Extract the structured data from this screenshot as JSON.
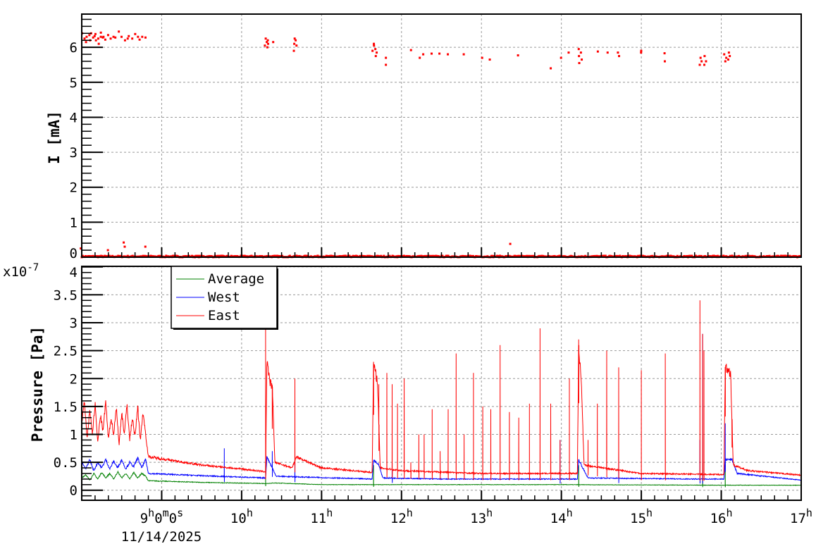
{
  "chart_data": [
    {
      "type": "scatter",
      "ylabel": "I [mA]",
      "xlim": [
        "08:00",
        "17:00"
      ],
      "ylim": [
        0,
        6.95
      ],
      "yticks": [
        "0",
        "1",
        "2",
        "3",
        "4",
        "5",
        "6"
      ],
      "grid": true,
      "color": "#ff0000",
      "points_at_zero": {
        "from": "08:00",
        "to": "17:00"
      },
      "points": [
        [
          "08:01",
          6.4
        ],
        [
          "08:02",
          6.25
        ],
        [
          "08:03",
          6.3
        ],
        [
          "08:04",
          6.15
        ],
        [
          "08:05",
          6.35
        ],
        [
          "08:06",
          6.2
        ],
        [
          "08:07",
          6.4
        ],
        [
          "08:08",
          6.28
        ],
        [
          "08:09",
          6.32
        ],
        [
          "08:10",
          6.2
        ],
        [
          "08:11",
          6.38
        ],
        [
          "08:12",
          6.25
        ],
        [
          "08:13",
          6.1
        ],
        [
          "08:14",
          6.3
        ],
        [
          "08:15",
          6.42
        ],
        [
          "08:16",
          6.28
        ],
        [
          "08:17",
          6.3
        ],
        [
          "08:18",
          6.22
        ],
        [
          "08:20",
          6.35
        ],
        [
          "08:22",
          6.25
        ],
        [
          "08:24",
          6.3
        ],
        [
          "08:26",
          6.28
        ],
        [
          "08:28",
          6.45
        ],
        [
          "08:30",
          6.3
        ],
        [
          "08:32",
          6.2
        ],
        [
          "08:34",
          6.25
        ],
        [
          "08:36",
          6.32
        ],
        [
          "08:38",
          6.25
        ],
        [
          "08:40",
          6.38
        ],
        [
          "08:42",
          6.3
        ],
        [
          "08:44",
          6.22
        ],
        [
          "08:46",
          6.3
        ],
        [
          "08:48",
          6.28
        ],
        [
          "08:00",
          0.25
        ],
        [
          "08:20",
          0.2
        ],
        [
          "08:32",
          0.3
        ],
        [
          "08:32",
          0.42
        ],
        [
          "08:47",
          0.3
        ],
        [
          "13:21",
          0.38
        ],
        [
          "10:18",
          6.25
        ],
        [
          "10:18",
          6.05
        ],
        [
          "10:19",
          6.15
        ],
        [
          "10:19",
          6.0
        ],
        [
          "10:20",
          6.2
        ],
        [
          "10:20",
          6.1
        ],
        [
          "10:24",
          6.15
        ],
        [
          "10:40",
          6.25
        ],
        [
          "10:40",
          6.1
        ],
        [
          "10:40",
          5.9
        ],
        [
          "10:41",
          6.2
        ],
        [
          "10:41",
          6.05
        ],
        [
          "11:39",
          6.1
        ],
        [
          "11:39",
          5.9
        ],
        [
          "11:40",
          5.75
        ],
        [
          "11:40",
          6.05
        ],
        [
          "11:41",
          5.95
        ],
        [
          "11:41",
          5.85
        ],
        [
          "11:48",
          5.7
        ],
        [
          "11:48",
          5.5
        ],
        [
          "12:07",
          5.92
        ],
        [
          "12:13",
          5.7
        ],
        [
          "12:17",
          5.8
        ],
        [
          "12:23",
          5.82
        ],
        [
          "12:29",
          5.82
        ],
        [
          "12:35",
          5.8
        ],
        [
          "12:47",
          5.8
        ],
        [
          "13:01",
          5.7
        ],
        [
          "13:07",
          5.65
        ],
        [
          "13:28",
          5.77
        ],
        [
          "13:52",
          5.4
        ],
        [
          "13:59",
          5.7
        ],
        [
          "14:06",
          5.85
        ],
        [
          "14:13",
          5.95
        ],
        [
          "14:13",
          5.75
        ],
        [
          "14:14",
          5.55
        ],
        [
          "14:14",
          5.85
        ],
        [
          "14:15",
          5.65
        ],
        [
          "14:27",
          5.88
        ],
        [
          "14:34",
          5.85
        ],
        [
          "14:43",
          5.75
        ],
        [
          "14:43",
          5.85
        ],
        [
          "15:00",
          5.85
        ],
        [
          "15:00",
          5.9
        ],
        [
          "15:18",
          5.6
        ],
        [
          "15:18",
          5.83
        ],
        [
          "15:44",
          5.5
        ],
        [
          "15:44",
          5.7
        ],
        [
          "15:45",
          5.6
        ],
        [
          "15:47",
          5.5
        ],
        [
          "15:47",
          5.75
        ],
        [
          "15:48",
          5.6
        ],
        [
          "16:03",
          5.6
        ],
        [
          "16:03",
          5.8
        ],
        [
          "16:04",
          5.7
        ],
        [
          "16:05",
          5.85
        ],
        [
          "16:05",
          5.65
        ],
        [
          "16:06",
          5.75
        ]
      ]
    },
    {
      "type": "line",
      "ylabel": "Pressure [Pa]",
      "y_multiplier": "x10",
      "y_multiplier_exp": "-7",
      "xlim": [
        "08:00",
        "17:00"
      ],
      "ylim": [
        -0.18,
        4.01
      ],
      "yticks": [
        "0",
        "0.5",
        "1",
        "1.5",
        "2",
        "2.5",
        "3",
        "3.5",
        "4"
      ],
      "xticks": [
        {
          "time": "09:00",
          "h": "9",
          "sup1": "h",
          "m": "0",
          "sup2": "m",
          "s": "0",
          "sup3": "s"
        },
        {
          "time": "10:00",
          "h": "10",
          "sup1": "h"
        },
        {
          "time": "11:00",
          "h": "11",
          "sup1": "h"
        },
        {
          "time": "12:00",
          "h": "12",
          "sup1": "h"
        },
        {
          "time": "13:00",
          "h": "13",
          "sup1": "h"
        },
        {
          "time": "14:00",
          "h": "14",
          "sup1": "h"
        },
        {
          "time": "15:00",
          "h": "15",
          "sup1": "h"
        },
        {
          "time": "16:00",
          "h": "16",
          "sup1": "h"
        },
        {
          "time": "17:00",
          "h": "17",
          "sup1": "h"
        }
      ],
      "date_label": "11/14/2025",
      "grid": true,
      "legend": {
        "placement": "top-left",
        "entries": [
          "Average",
          "West",
          "East"
        ]
      },
      "series": [
        {
          "name": "Average",
          "color": "#008000",
          "baseline": [
            [
              "08:00",
              0.22
            ],
            [
              "08:03",
              0.28
            ],
            [
              "08:06",
              0.18
            ],
            [
              "08:09",
              0.3
            ],
            [
              "08:12",
              0.2
            ],
            [
              "08:15",
              0.32
            ],
            [
              "08:18",
              0.22
            ],
            [
              "08:21",
              0.3
            ],
            [
              "08:24",
              0.2
            ],
            [
              "08:27",
              0.33
            ],
            [
              "08:30",
              0.22
            ],
            [
              "08:33",
              0.3
            ],
            [
              "08:36",
              0.2
            ],
            [
              "08:39",
              0.32
            ],
            [
              "08:42",
              0.22
            ],
            [
              "08:45",
              0.3
            ],
            [
              "08:48",
              0.25
            ],
            [
              "08:50",
              0.17
            ],
            [
              "09:30",
              0.14
            ],
            [
              "10:18",
              0.12
            ],
            [
              "10:25",
              0.13
            ],
            [
              "11:00",
              0.1
            ],
            [
              "12:00",
              0.1
            ],
            [
              "14:00",
              0.1
            ],
            [
              "16:00",
              0.09
            ],
            [
              "17:00",
              0.09
            ]
          ],
          "spikes": [
            [
              "10:18",
              0.5
            ],
            [
              "11:39",
              0.45
            ],
            [
              "14:13",
              0.45
            ],
            [
              "15:46",
              0.5
            ],
            [
              "16:03",
              0.5
            ]
          ]
        },
        {
          "name": "West",
          "color": "#0000ff",
          "baseline": [
            [
              "08:00",
              0.5
            ],
            [
              "08:03",
              0.38
            ],
            [
              "08:06",
              0.55
            ],
            [
              "08:09",
              0.35
            ],
            [
              "08:12",
              0.5
            ],
            [
              "08:15",
              0.4
            ],
            [
              "08:18",
              0.55
            ],
            [
              "08:21",
              0.38
            ],
            [
              "08:24",
              0.52
            ],
            [
              "08:27",
              0.4
            ],
            [
              "08:30",
              0.55
            ],
            [
              "08:33",
              0.38
            ],
            [
              "08:36",
              0.5
            ],
            [
              "08:39",
              0.42
            ],
            [
              "08:42",
              0.58
            ],
            [
              "08:45",
              0.4
            ],
            [
              "08:48",
              0.55
            ],
            [
              "08:50",
              0.3
            ],
            [
              "09:30",
              0.26
            ],
            [
              "10:18",
              0.22
            ],
            [
              "10:19",
              0.6
            ],
            [
              "10:22",
              0.45
            ],
            [
              "10:26",
              0.25
            ],
            [
              "11:38",
              0.2
            ],
            [
              "11:39",
              0.55
            ],
            [
              "11:43",
              0.45
            ],
            [
              "11:46",
              0.22
            ],
            [
              "12:30",
              0.2
            ],
            [
              "14:12",
              0.2
            ],
            [
              "14:13",
              0.55
            ],
            [
              "14:16",
              0.4
            ],
            [
              "14:20",
              0.22
            ],
            [
              "15:40",
              0.2
            ],
            [
              "16:02",
              0.2
            ],
            [
              "16:03",
              0.55
            ],
            [
              "16:08",
              0.55
            ],
            [
              "16:12",
              0.3
            ],
            [
              "17:00",
              0.18
            ]
          ],
          "spikes": [
            [
              "09:47",
              0.75
            ],
            [
              "10:23",
              0.7
            ],
            [
              "10:40",
              0.6
            ],
            [
              "11:53",
              0.55
            ],
            [
              "13:59",
              0.9
            ],
            [
              "14:43",
              0.7
            ],
            [
              "15:44",
              0.9
            ],
            [
              "15:46",
              2.8
            ],
            [
              "16:03",
              1.2
            ]
          ]
        },
        {
          "name": "East",
          "color": "#ff0000",
          "baseline": [
            [
              "08:00",
              1.2
            ],
            [
              "08:02",
              1.6
            ],
            [
              "08:04",
              0.9
            ],
            [
              "08:06",
              1.45
            ],
            [
              "08:08",
              1.0
            ],
            [
              "08:10",
              1.55
            ],
            [
              "08:12",
              0.85
            ],
            [
              "08:14",
              1.35
            ],
            [
              "08:16",
              1.05
            ],
            [
              "08:18",
              1.6
            ],
            [
              "08:20",
              0.9
            ],
            [
              "08:22",
              1.3
            ],
            [
              "08:24",
              1.0
            ],
            [
              "08:26",
              1.5
            ],
            [
              "08:28",
              0.8
            ],
            [
              "08:30",
              1.4
            ],
            [
              "08:32",
              1.0
            ],
            [
              "08:34",
              1.55
            ],
            [
              "08:36",
              0.9
            ],
            [
              "08:38",
              1.3
            ],
            [
              "08:40",
              0.95
            ],
            [
              "08:42",
              1.5
            ],
            [
              "08:44",
              0.9
            ],
            [
              "08:46",
              1.4
            ],
            [
              "08:48",
              1.0
            ],
            [
              "08:50",
              0.6
            ],
            [
              "09:30",
              0.45
            ],
            [
              "10:00",
              0.38
            ],
            [
              "10:18",
              0.33
            ],
            [
              "10:19",
              2.35
            ],
            [
              "10:21",
              1.95
            ],
            [
              "10:23",
              1.85
            ],
            [
              "10:25",
              0.5
            ],
            [
              "10:38",
              0.4
            ],
            [
              "10:41",
              0.6
            ],
            [
              "11:00",
              0.4
            ],
            [
              "11:38",
              0.32
            ],
            [
              "11:39",
              2.25
            ],
            [
              "11:42",
              1.95
            ],
            [
              "11:44",
              0.4
            ],
            [
              "12:00",
              0.35
            ],
            [
              "13:00",
              0.3
            ],
            [
              "14:12",
              0.3
            ],
            [
              "14:13",
              2.6
            ],
            [
              "14:15",
              1.9
            ],
            [
              "14:17",
              0.45
            ],
            [
              "15:00",
              0.3
            ],
            [
              "16:02",
              0.28
            ],
            [
              "16:03",
              2.2
            ],
            [
              "16:07",
              2.1
            ],
            [
              "16:09",
              0.45
            ],
            [
              "16:20",
              0.35
            ],
            [
              "17:00",
              0.27
            ]
          ],
          "spikes": [
            [
              "10:18",
              3.9
            ],
            [
              "10:23",
              1.1
            ],
            [
              "10:40",
              2.0
            ],
            [
              "11:39",
              2.3
            ],
            [
              "11:43",
              1.9
            ],
            [
              "11:49",
              2.1
            ],
            [
              "11:53",
              1.9
            ],
            [
              "11:57",
              1.55
            ],
            [
              "12:02",
              2.0
            ],
            [
              "12:07",
              0.5
            ],
            [
              "12:13",
              1.0
            ],
            [
              "12:17",
              1.0
            ],
            [
              "12:23",
              1.45
            ],
            [
              "12:29",
              0.7
            ],
            [
              "12:35",
              1.45
            ],
            [
              "12:41",
              2.45
            ],
            [
              "12:47",
              1.0
            ],
            [
              "12:54",
              2.1
            ],
            [
              "13:01",
              1.5
            ],
            [
              "13:07",
              1.45
            ],
            [
              "13:14",
              2.6
            ],
            [
              "13:21",
              1.4
            ],
            [
              "13:28",
              1.3
            ],
            [
              "13:36",
              1.55
            ],
            [
              "13:44",
              2.9
            ],
            [
              "13:52",
              1.55
            ],
            [
              "13:59",
              0.9
            ],
            [
              "14:06",
              2.0
            ],
            [
              "14:13",
              2.7
            ],
            [
              "14:20",
              0.9
            ],
            [
              "14:27",
              1.55
            ],
            [
              "14:34",
              2.5
            ],
            [
              "14:43",
              2.2
            ],
            [
              "15:00",
              2.15
            ],
            [
              "15:18",
              2.45
            ],
            [
              "15:44",
              3.4
            ],
            [
              "15:46",
              2.8
            ],
            [
              "15:47",
              2.5
            ],
            [
              "16:03",
              2.2
            ],
            [
              "16:08",
              1.0
            ]
          ]
        }
      ]
    }
  ]
}
